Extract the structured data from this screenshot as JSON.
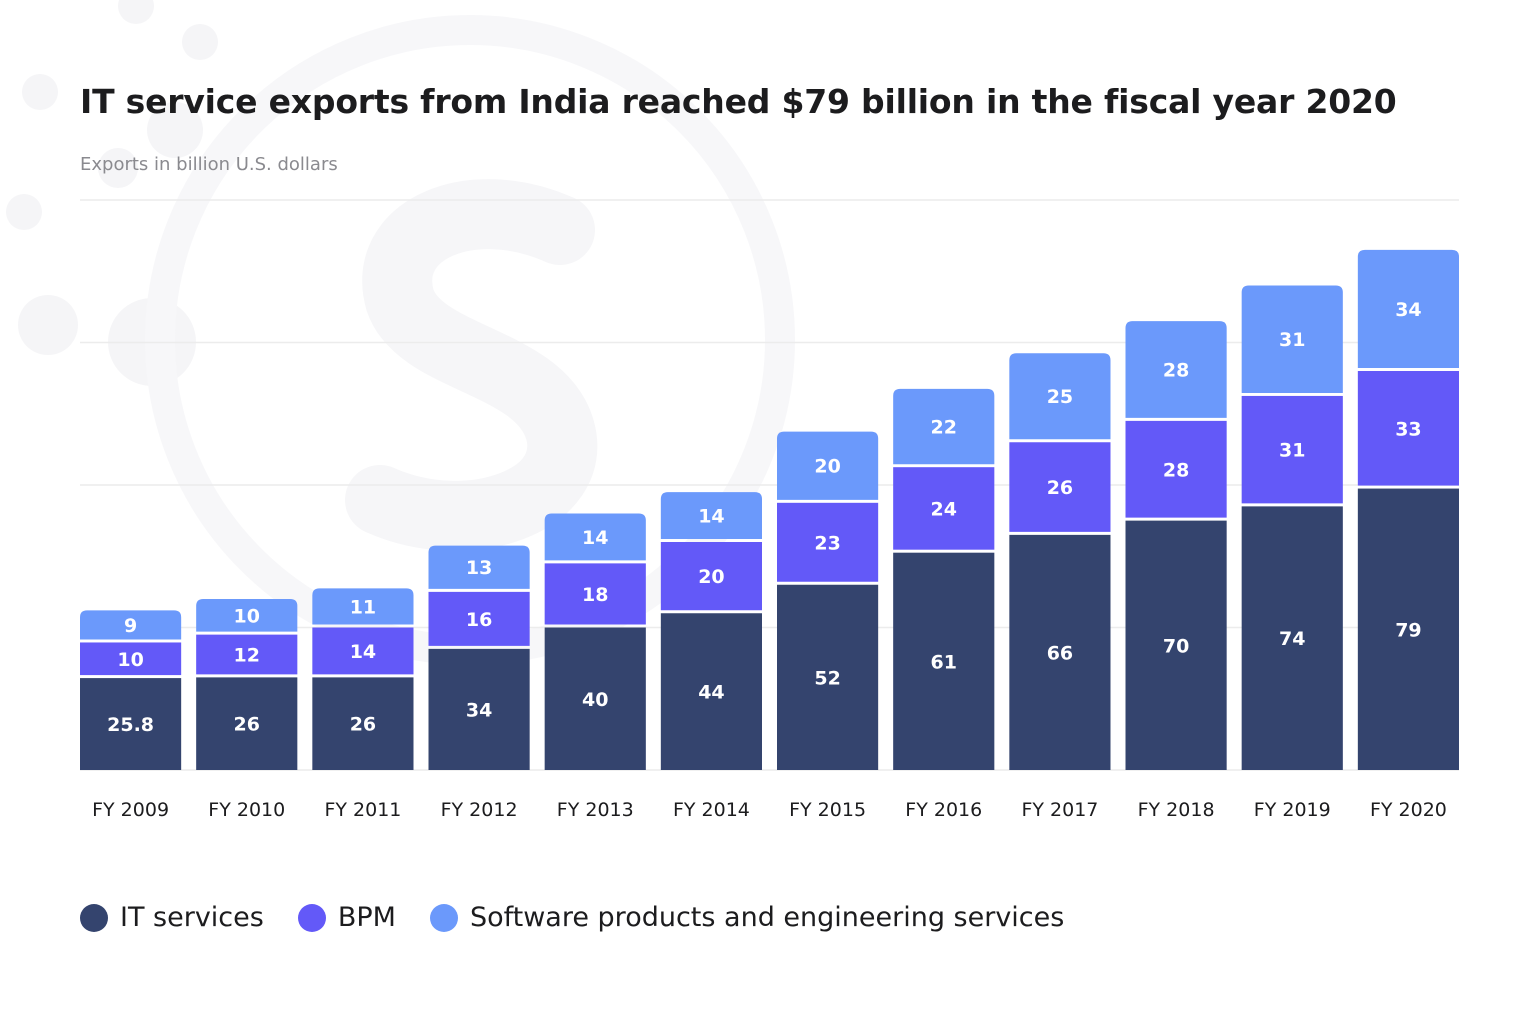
{
  "title": "IT service exports from India reached $79 billion in the fiscal year 2020",
  "subtitle": "Exports in billion U.S. dollars",
  "colors": {
    "it_services": "#34446e",
    "bpm": "#6359f8",
    "software": "#6b99fb",
    "gridline": "#ececec",
    "label_text": "#ffffff",
    "axis_text": "#1c1c1e"
  },
  "legend": [
    {
      "label": "IT services",
      "color": "#34446e"
    },
    {
      "label": "BPM",
      "color": "#6359f8"
    },
    {
      "label": "Software products and engineering services",
      "color": "#6b99fb"
    }
  ],
  "chart_data": {
    "type": "bar",
    "stacked": true,
    "title": "IT service exports from India reached $79 billion in the fiscal year 2020",
    "subtitle": "Exports in billion U.S. dollars",
    "xlabel": "",
    "ylabel": "",
    "ylim": [
      0,
      160
    ],
    "grid": true,
    "legend_position": "bottom-left",
    "categories": [
      "FY 2009",
      "FY 2010",
      "FY 2011",
      "FY 2012",
      "FY 2013",
      "FY 2014",
      "FY 2015",
      "FY 2016",
      "FY 2017",
      "FY 2018",
      "FY 2019",
      "FY 2020"
    ],
    "series": [
      {
        "name": "IT services",
        "labels": [
          "25.8",
          "26",
          "26",
          "34",
          "40",
          "44",
          "52",
          "61",
          "66",
          "70",
          "74",
          "79"
        ],
        "values": [
          25.8,
          26,
          26,
          34,
          40,
          44,
          52,
          61,
          66,
          70,
          74,
          79
        ]
      },
      {
        "name": "BPM",
        "labels": [
          "10",
          "12",
          "14",
          "16",
          "18",
          "20",
          "23",
          "24",
          "26",
          "28",
          "31",
          "33"
        ],
        "values": [
          10,
          12,
          14,
          16,
          18,
          20,
          23,
          24,
          26,
          28,
          31,
          33
        ]
      },
      {
        "name": "Software products and engineering services",
        "labels": [
          "9",
          "10",
          "11",
          "13",
          "14",
          "14",
          "20",
          "22",
          "25",
          "28",
          "31",
          "34"
        ],
        "values": [
          9,
          10,
          11,
          13,
          14,
          14,
          20,
          22,
          25,
          28,
          31,
          34
        ]
      }
    ]
  }
}
